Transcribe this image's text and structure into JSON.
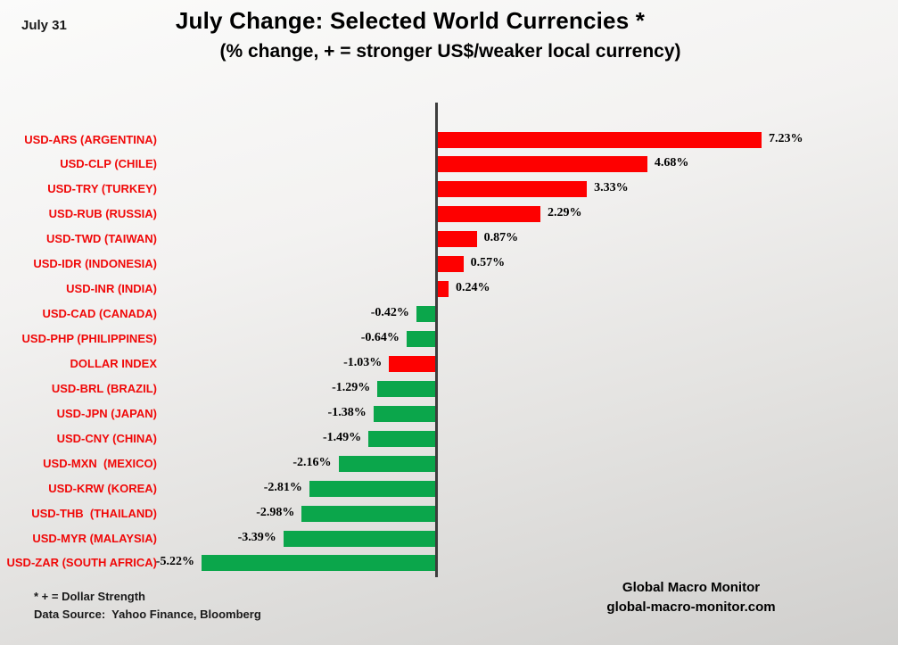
{
  "header": {
    "date_label": "July 31",
    "title": "July Change: Selected World Currencies *",
    "subtitle": "(% change, + = stronger US$/weaker local currency)"
  },
  "chart_data": {
    "type": "bar",
    "orientation": "horizontal",
    "title": "July Change: Selected World Currencies *",
    "subtitle": "(% change, + = stronger US$/weaker local currency)",
    "xlim": [
      -6,
      8
    ],
    "grid": false,
    "legend": false,
    "zero_axis_color": "#3d3d3d",
    "categories": [
      "USD-ARS (ARGENTINA)",
      "USD-CLP (CHILE)",
      "USD-TRY (TURKEY)",
      "USD-RUB (RUSSIA)",
      "USD-TWD (TAIWAN)",
      "USD-IDR (INDONESIA)",
      "USD-INR (INDIA)",
      "USD-CAD (CANADA)",
      "USD-PHP (PHILIPPINES)",
      "DOLLAR INDEX",
      "USD-BRL (BRAZIL)",
      "USD-JPN (JAPAN)",
      "USD-CNY (CHINA)",
      "USD-MXN  (MEXICO)",
      "USD-KRW (KOREA)",
      "USD-THB  (THAILAND)",
      "USD-MYR (MALAYSIA)",
      "USD-ZAR (SOUTH AFRICA)"
    ],
    "values": [
      7.23,
      4.68,
      3.33,
      2.29,
      0.87,
      0.57,
      0.24,
      -0.42,
      -0.64,
      -1.03,
      -1.29,
      -1.38,
      -1.49,
      -2.16,
      -2.81,
      -2.98,
      -3.39,
      -5.22
    ],
    "value_labels": [
      "7.23%",
      "4.68%",
      "3.33%",
      "2.29%",
      "0.87%",
      "0.57%",
      "0.24%",
      "-0.42%",
      "-0.64%",
      "-1.03%",
      "-1.29%",
      "-1.38%",
      "-1.49%",
      "-2.16%",
      "-2.81%",
      "-2.98%",
      "-3.39%",
      "-5.22%"
    ],
    "bar_colors": [
      "#fe0000",
      "#fe0000",
      "#fe0000",
      "#fe0000",
      "#fe0000",
      "#fe0000",
      "#fe0000",
      "#0ba64b",
      "#0ba64b",
      "#fe0000",
      "#0ba64b",
      "#0ba64b",
      "#0ba64b",
      "#0ba64b",
      "#0ba64b",
      "#0ba64b",
      "#0ba64b",
      "#0ba64b"
    ],
    "colors": {
      "dollar_stronger": "#fe0000",
      "dollar_weaker": "#0ba64b",
      "category_label": "#f00909",
      "value_label": "#000000"
    }
  },
  "footer": {
    "note1": "* + = Dollar Strength",
    "note2": "Data Source:  Yahoo Finance, Bloomberg",
    "brand_line1": "Global Macro Monitor",
    "brand_line2": "global-macro-monitor.com"
  }
}
